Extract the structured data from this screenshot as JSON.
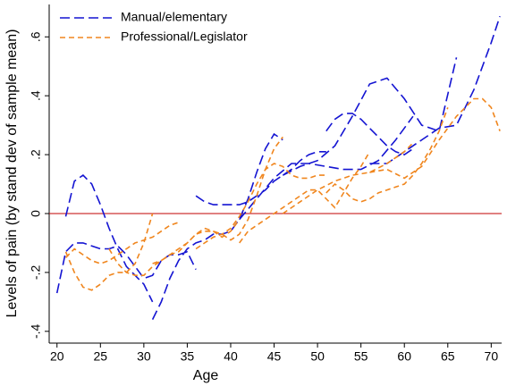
{
  "chart_data": {
    "type": "line",
    "x_label": "Age",
    "y_label": "Levels of pain (by stand dev of sample mean)",
    "xlim": [
      19.1,
      71.2
    ],
    "ylim": [
      -0.44,
      0.71
    ],
    "xticks": [
      20,
      25,
      30,
      35,
      40,
      45,
      50,
      55,
      60,
      65,
      70
    ],
    "yticks": [
      {
        "value": -0.4,
        "label": "-.4"
      },
      {
        "value": -0.2,
        "label": "-.2"
      },
      0,
      {
        "value": 0.2,
        "label": ".2"
      },
      {
        "value": 0.4,
        "label": ".4"
      },
      {
        "value": 0.6,
        "label": ".6"
      }
    ],
    "reference_line": {
      "value": 0,
      "color": "#c00000"
    },
    "legend": "top-left",
    "series": [
      {
        "name": "Manual/elementary",
        "color": "#1414d2",
        "dash": "11,5",
        "x": [
          20,
          21,
          22,
          23,
          24,
          25,
          26,
          27,
          28,
          29,
          30,
          31,
          32,
          33,
          34,
          35,
          36,
          null,
          21,
          22,
          23,
          24,
          25,
          26,
          27,
          28,
          29,
          30,
          31,
          null,
          31,
          32,
          33,
          34,
          35,
          36,
          37,
          38,
          39,
          40,
          41,
          42,
          43,
          44,
          45,
          46,
          null,
          36,
          37,
          38,
          39,
          40,
          41,
          42,
          43,
          44,
          45,
          46,
          47,
          48,
          49,
          50,
          51,
          null,
          41,
          43,
          45,
          47,
          49,
          51,
          53,
          55,
          57,
          59,
          61,
          null,
          46,
          48,
          50,
          52,
          54,
          56,
          58,
          60,
          62,
          64,
          66,
          null,
          51,
          52,
          53,
          54,
          55,
          56,
          57,
          58,
          59,
          60,
          61,
          null,
          56,
          58,
          60,
          62,
          64,
          66,
          68,
          70,
          71
        ],
        "values": [
          -0.27,
          -0.13,
          -0.1,
          -0.1,
          -0.11,
          -0.12,
          -0.12,
          -0.11,
          -0.14,
          -0.18,
          -0.22,
          -0.21,
          -0.16,
          -0.14,
          -0.14,
          -0.13,
          -0.19,
          null,
          -0.01,
          0.11,
          0.13,
          0.1,
          0.03,
          -0.05,
          -0.12,
          -0.18,
          -0.21,
          -0.24,
          -0.3,
          null,
          -0.36,
          -0.3,
          -0.22,
          -0.16,
          -0.12,
          -0.1,
          -0.09,
          -0.07,
          -0.07,
          -0.06,
          -0.02,
          0.05,
          0.14,
          0.22,
          0.27,
          0.25,
          null,
          0.06,
          0.04,
          0.03,
          0.03,
          0.03,
          0.03,
          0.04,
          0.06,
          0.08,
          0.11,
          0.13,
          0.15,
          0.18,
          0.2,
          0.21,
          0.21,
          null,
          -0.02,
          0.05,
          0.12,
          0.17,
          0.17,
          0.16,
          0.15,
          0.15,
          0.18,
          0.25,
          0.33,
          null,
          0.13,
          0.16,
          0.18,
          0.23,
          0.33,
          0.44,
          0.46,
          0.39,
          0.3,
          0.28,
          0.53,
          null,
          0.28,
          0.32,
          0.34,
          0.34,
          0.32,
          0.29,
          0.26,
          0.23,
          0.21,
          0.2,
          0.22,
          null,
          0.17,
          0.17,
          0.21,
          0.25,
          0.29,
          0.3,
          0.42,
          0.58,
          0.67
        ]
      },
      {
        "name": "Professional/Legislator",
        "color": "#f0861e",
        "dash": "6,4",
        "x": [
          21,
          22,
          23,
          24,
          25,
          26,
          27,
          28,
          29,
          30,
          31,
          null,
          21,
          22,
          23,
          24,
          25,
          26,
          27,
          28,
          29,
          30,
          31,
          32,
          33,
          34,
          null,
          26,
          27,
          28,
          29,
          30,
          31,
          32,
          33,
          34,
          35,
          36,
          37,
          38,
          39,
          40,
          41,
          null,
          31,
          32,
          33,
          34,
          35,
          36,
          37,
          38,
          39,
          40,
          41,
          42,
          43,
          44,
          45,
          46,
          null,
          36,
          37,
          38,
          39,
          40,
          41,
          42,
          43,
          44,
          45,
          46,
          47,
          48,
          49,
          50,
          51,
          null,
          41,
          42,
          43,
          44,
          45,
          46,
          47,
          48,
          49,
          50,
          51,
          52,
          53,
          54,
          55,
          56,
          null,
          46,
          48,
          50,
          52,
          54,
          56,
          58,
          60,
          61,
          null,
          51,
          52,
          53,
          54,
          55,
          56,
          57,
          58,
          59,
          60,
          61,
          62,
          63,
          64,
          65,
          null,
          56,
          58,
          60,
          62,
          64,
          66,
          68,
          69,
          70,
          71
        ],
        "values": [
          -0.13,
          -0.2,
          -0.25,
          -0.26,
          -0.24,
          -0.21,
          -0.2,
          -0.2,
          -0.17,
          -0.1,
          0.0,
          null,
          -0.15,
          -0.12,
          -0.14,
          -0.16,
          -0.17,
          -0.16,
          -0.14,
          -0.12,
          -0.1,
          -0.09,
          -0.08,
          -0.06,
          -0.04,
          -0.03,
          null,
          -0.12,
          -0.17,
          -0.2,
          -0.21,
          -0.21,
          -0.18,
          -0.16,
          -0.14,
          -0.13,
          -0.1,
          -0.07,
          -0.05,
          -0.06,
          -0.08,
          -0.06,
          -0.02,
          null,
          -0.17,
          -0.16,
          -0.14,
          -0.12,
          -0.1,
          -0.07,
          -0.06,
          -0.06,
          -0.07,
          -0.09,
          -0.07,
          -0.02,
          0.06,
          0.15,
          0.22,
          0.26,
          null,
          -0.12,
          -0.1,
          -0.08,
          -0.07,
          -0.05,
          -0.01,
          0.04,
          0.1,
          0.15,
          0.17,
          0.16,
          0.13,
          0.12,
          0.12,
          0.13,
          0.13,
          null,
          -0.1,
          -0.06,
          -0.04,
          -0.02,
          0.0,
          0.02,
          0.04,
          0.06,
          0.08,
          0.08,
          0.05,
          0.02,
          0.07,
          0.12,
          0.16,
          0.21,
          null,
          0.0,
          0.04,
          0.08,
          0.11,
          0.13,
          0.14,
          0.17,
          0.21,
          0.24,
          null,
          0.07,
          0.1,
          0.08,
          0.05,
          0.04,
          0.05,
          0.07,
          0.08,
          0.09,
          0.1,
          0.13,
          0.17,
          0.22,
          0.28,
          0.36,
          null,
          0.14,
          0.15,
          0.12,
          0.16,
          0.25,
          0.33,
          0.39,
          0.39,
          0.36,
          0.28
        ]
      }
    ]
  }
}
